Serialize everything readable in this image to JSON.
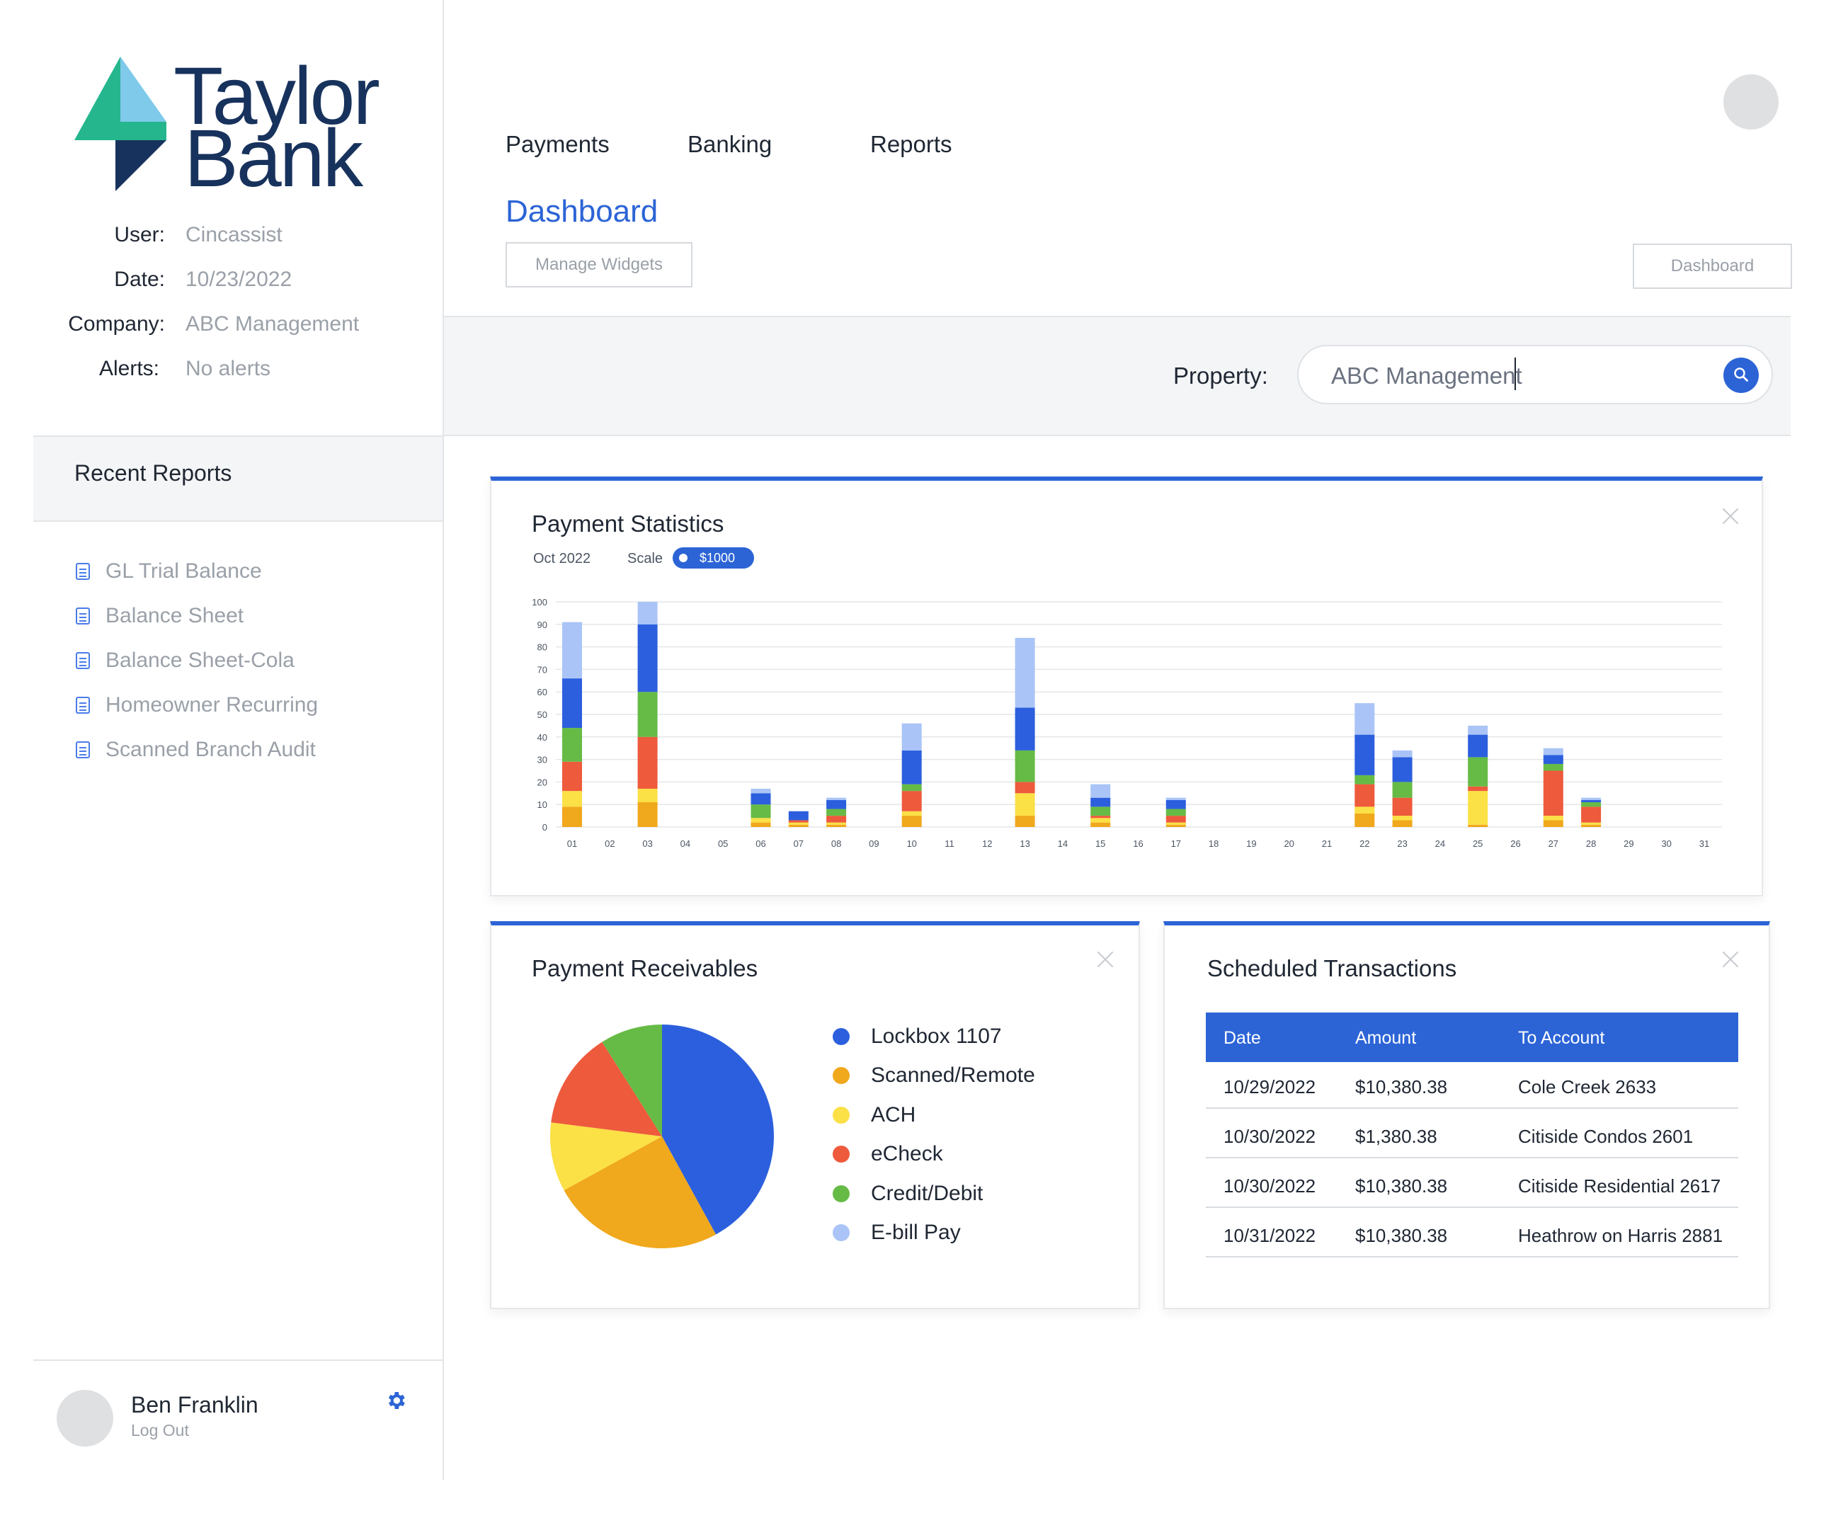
{
  "brand": {
    "line1": "Taylor",
    "line2": "Bank"
  },
  "info": [
    {
      "label": "User:",
      "value": "Cincassist"
    },
    {
      "label": "Date:",
      "value": "10/23/2022"
    },
    {
      "label": "Company:",
      "value": "ABC Management"
    },
    {
      "label": "Alerts:",
      "value": "No alerts"
    }
  ],
  "recent_reports": {
    "title": "Recent Reports",
    "items": [
      "GL Trial Balance",
      "Balance Sheet",
      "Balance Sheet-Cola",
      "Homeowner Recurring",
      "Scanned Branch Audit"
    ]
  },
  "user": {
    "name": "Ben Franklin",
    "logout": "Log Out"
  },
  "nav": {
    "items": [
      "Payments",
      "Banking",
      "Reports"
    ]
  },
  "page": {
    "title": "Dashboard",
    "manage_widgets": "Manage Widgets",
    "dashboard_button": "Dashboard"
  },
  "property": {
    "label": "Property:",
    "value": "ABC Management"
  },
  "payment_statistics": {
    "title": "Payment Statistics",
    "period": "Oct 2022",
    "scale_label": "Scale",
    "scale_value": "$1000"
  },
  "colors": {
    "primary": "#2c64d6",
    "lockbox": "#2c5fdd",
    "scanned": "#f0a81c",
    "ach": "#fbe046",
    "echeck": "#ee5a3c",
    "credit": "#66bb46",
    "ebill": "#aac4f7"
  },
  "chart_data": [
    {
      "type": "bar",
      "stacked": true,
      "categories": [
        "01",
        "02",
        "03",
        "04",
        "05",
        "06",
        "07",
        "08",
        "09",
        "10",
        "11",
        "12",
        "13",
        "14",
        "15",
        "16",
        "17",
        "18",
        "19",
        "20",
        "21",
        "22",
        "23",
        "24",
        "25",
        "26",
        "27",
        "28",
        "29",
        "30",
        "31"
      ],
      "ylim": [
        0,
        100
      ],
      "yticks": [
        0,
        10,
        20,
        30,
        40,
        50,
        60,
        70,
        80,
        90,
        100
      ],
      "grid": true,
      "series": [
        {
          "key": "scanned",
          "values": [
            9,
            0,
            11,
            0,
            0,
            2,
            1,
            1,
            0,
            5,
            0,
            0,
            5,
            0,
            2,
            0,
            1,
            0,
            0,
            0,
            0,
            6,
            3,
            0,
            1,
            0,
            3,
            1,
            0,
            0,
            0
          ]
        },
        {
          "key": "ach",
          "values": [
            7,
            0,
            6,
            0,
            0,
            2,
            1,
            1,
            0,
            2,
            0,
            0,
            10,
            0,
            2,
            0,
            1,
            0,
            0,
            0,
            0,
            3,
            2,
            0,
            15,
            0,
            2,
            1,
            0,
            0,
            0
          ]
        },
        {
          "key": "echeck",
          "values": [
            13,
            0,
            23,
            0,
            0,
            0,
            1,
            3,
            0,
            9,
            0,
            0,
            5,
            0,
            1,
            0,
            3,
            0,
            0,
            0,
            0,
            10,
            8,
            0,
            2,
            0,
            20,
            7,
            0,
            0,
            0
          ]
        },
        {
          "key": "credit",
          "values": [
            15,
            0,
            20,
            0,
            0,
            6,
            0,
            3,
            0,
            3,
            0,
            0,
            14,
            0,
            4,
            0,
            3,
            0,
            0,
            0,
            0,
            4,
            7,
            0,
            13,
            0,
            3,
            2,
            0,
            0,
            0
          ]
        },
        {
          "key": "lockbox",
          "values": [
            22,
            0,
            30,
            0,
            0,
            5,
            4,
            4,
            0,
            15,
            0,
            0,
            19,
            0,
            4,
            0,
            4,
            0,
            0,
            0,
            0,
            18,
            11,
            0,
            10,
            0,
            4,
            1,
            0,
            0,
            0
          ]
        },
        {
          "key": "ebill",
          "values": [
            25,
            0,
            10,
            0,
            0,
            2,
            0,
            1,
            0,
            12,
            0,
            0,
            31,
            0,
            6,
            0,
            1,
            0,
            0,
            0,
            0,
            14,
            3,
            0,
            4,
            0,
            3,
            1,
            0,
            0,
            0
          ]
        }
      ]
    },
    {
      "type": "pie",
      "title": "Payment Receivables",
      "labels": [
        "Lockbox 1107",
        "Scanned/Remote",
        "ACH",
        "eCheck",
        "Credit/Debit",
        "E-bill Pay"
      ],
      "values": [
        42,
        25,
        10,
        14,
        9,
        0
      ],
      "color_keys": [
        "lockbox",
        "scanned",
        "ach",
        "echeck",
        "credit",
        "ebill"
      ]
    }
  ],
  "payment_receivables": {
    "title": "Payment Receivables"
  },
  "scheduled": {
    "title": "Scheduled Transactions",
    "columns": [
      "Date",
      "Amount",
      "To Account"
    ],
    "rows": [
      [
        "10/29/2022",
        "$10,380.38",
        "Cole Creek 2633"
      ],
      [
        "10/30/2022",
        "$1,380.38",
        "Citiside Condos 2601"
      ],
      [
        "10/30/2022",
        "$10,380.38",
        "Citiside Residential 2617"
      ],
      [
        "10/31/2022",
        "$10,380.38",
        "Heathrow on Harris 2881"
      ]
    ]
  }
}
